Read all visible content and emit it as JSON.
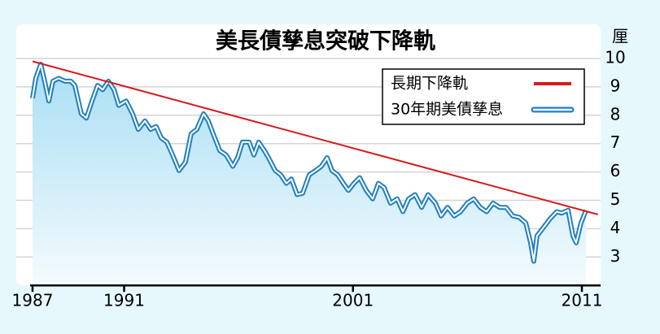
{
  "chart_data": {
    "type": "line",
    "title": "美長債孳息突破下降軌",
    "y_label": "厘",
    "xlim": [
      1987,
      2011.8
    ],
    "xticks": [
      1987,
      1991,
      2001,
      2011
    ],
    "ylim": [
      2,
      11.2
    ],
    "yticks": [
      3,
      4,
      5,
      6,
      7,
      8,
      9,
      10
    ],
    "grid": true,
    "legend": "top-right",
    "series": [
      {
        "name": "長期下降軌",
        "color": "#d7191c",
        "style": "solid",
        "x": [
          1987,
          2011.7
        ],
        "values": [
          9.9,
          4.5
        ]
      },
      {
        "name": "30年期美債孳息",
        "color": "#1f7fc0",
        "style": "double",
        "x": [
          1987,
          1987.14,
          1987.36,
          1987.53,
          1987.71,
          1987.89,
          1988.14,
          1988.42,
          1988.67,
          1988.85,
          1989.13,
          1989.35,
          1989.6,
          1989.84,
          1990.06,
          1990.31,
          1990.56,
          1990.77,
          1991.09,
          1991.37,
          1991.62,
          1991.91,
          1992.16,
          1992.4,
          1992.62,
          1992.87,
          1993.12,
          1993.4,
          1993.68,
          1993.93,
          1994.18,
          1994.47,
          1994.68,
          1994.89,
          1995.18,
          1995.46,
          1995.75,
          1995.96,
          1996.17,
          1996.46,
          1996.67,
          1996.88,
          1997.13,
          1997.31,
          1997.6,
          1997.84,
          1998.09,
          1998.31,
          1998.56,
          1998.8,
          1999.09,
          1999.37,
          1999.62,
          1999.87,
          2000.08,
          2000.33,
          2000.58,
          2000.8,
          2001.04,
          2001.29,
          2001.58,
          2001.86,
          2002.11,
          2002.36,
          2002.64,
          2002.93,
          2003.18,
          2003.43,
          2003.71,
          2004.0,
          2004.28,
          2004.6,
          2004.85,
          2005.13,
          2005.42,
          2005.7,
          2005.99,
          2006.27,
          2006.56,
          2006.84,
          2007.12,
          2007.41,
          2007.69,
          2007.98,
          2008.26,
          2008.55,
          2008.76,
          2008.9,
          2009.04,
          2009.33,
          2009.61,
          2009.9,
          2010.11,
          2010.4,
          2010.61,
          2010.75,
          2010.96,
          2011.18
        ],
        "values": [
          8.6,
          9.3,
          9.8,
          9.2,
          8.5,
          9.2,
          9.3,
          9.2,
          9.2,
          9.05,
          8.05,
          7.9,
          8.5,
          9.05,
          8.9,
          9.2,
          8.9,
          8.35,
          8.5,
          8.05,
          7.5,
          7.8,
          7.5,
          7.6,
          7.2,
          7.05,
          6.6,
          6.05,
          6.35,
          7.35,
          7.5,
          8.05,
          7.8,
          7.35,
          6.75,
          6.6,
          6.2,
          6.5,
          7.05,
          7.05,
          6.6,
          7.05,
          6.75,
          6.5,
          6.05,
          5.9,
          5.6,
          5.75,
          5.2,
          5.25,
          5.9,
          6.05,
          6.2,
          6.5,
          6.05,
          5.9,
          5.6,
          5.35,
          5.6,
          5.8,
          5.35,
          5.05,
          5.6,
          5.45,
          4.9,
          5.05,
          4.6,
          5.05,
          5.2,
          4.75,
          5.2,
          4.9,
          4.45,
          4.75,
          4.45,
          4.6,
          4.9,
          5.05,
          4.75,
          4.6,
          4.9,
          4.75,
          4.75,
          4.45,
          4.4,
          4.2,
          3.5,
          2.85,
          3.75,
          4.05,
          4.35,
          4.6,
          4.55,
          4.65,
          3.75,
          3.5,
          4.2,
          4.65
        ]
      }
    ]
  }
}
